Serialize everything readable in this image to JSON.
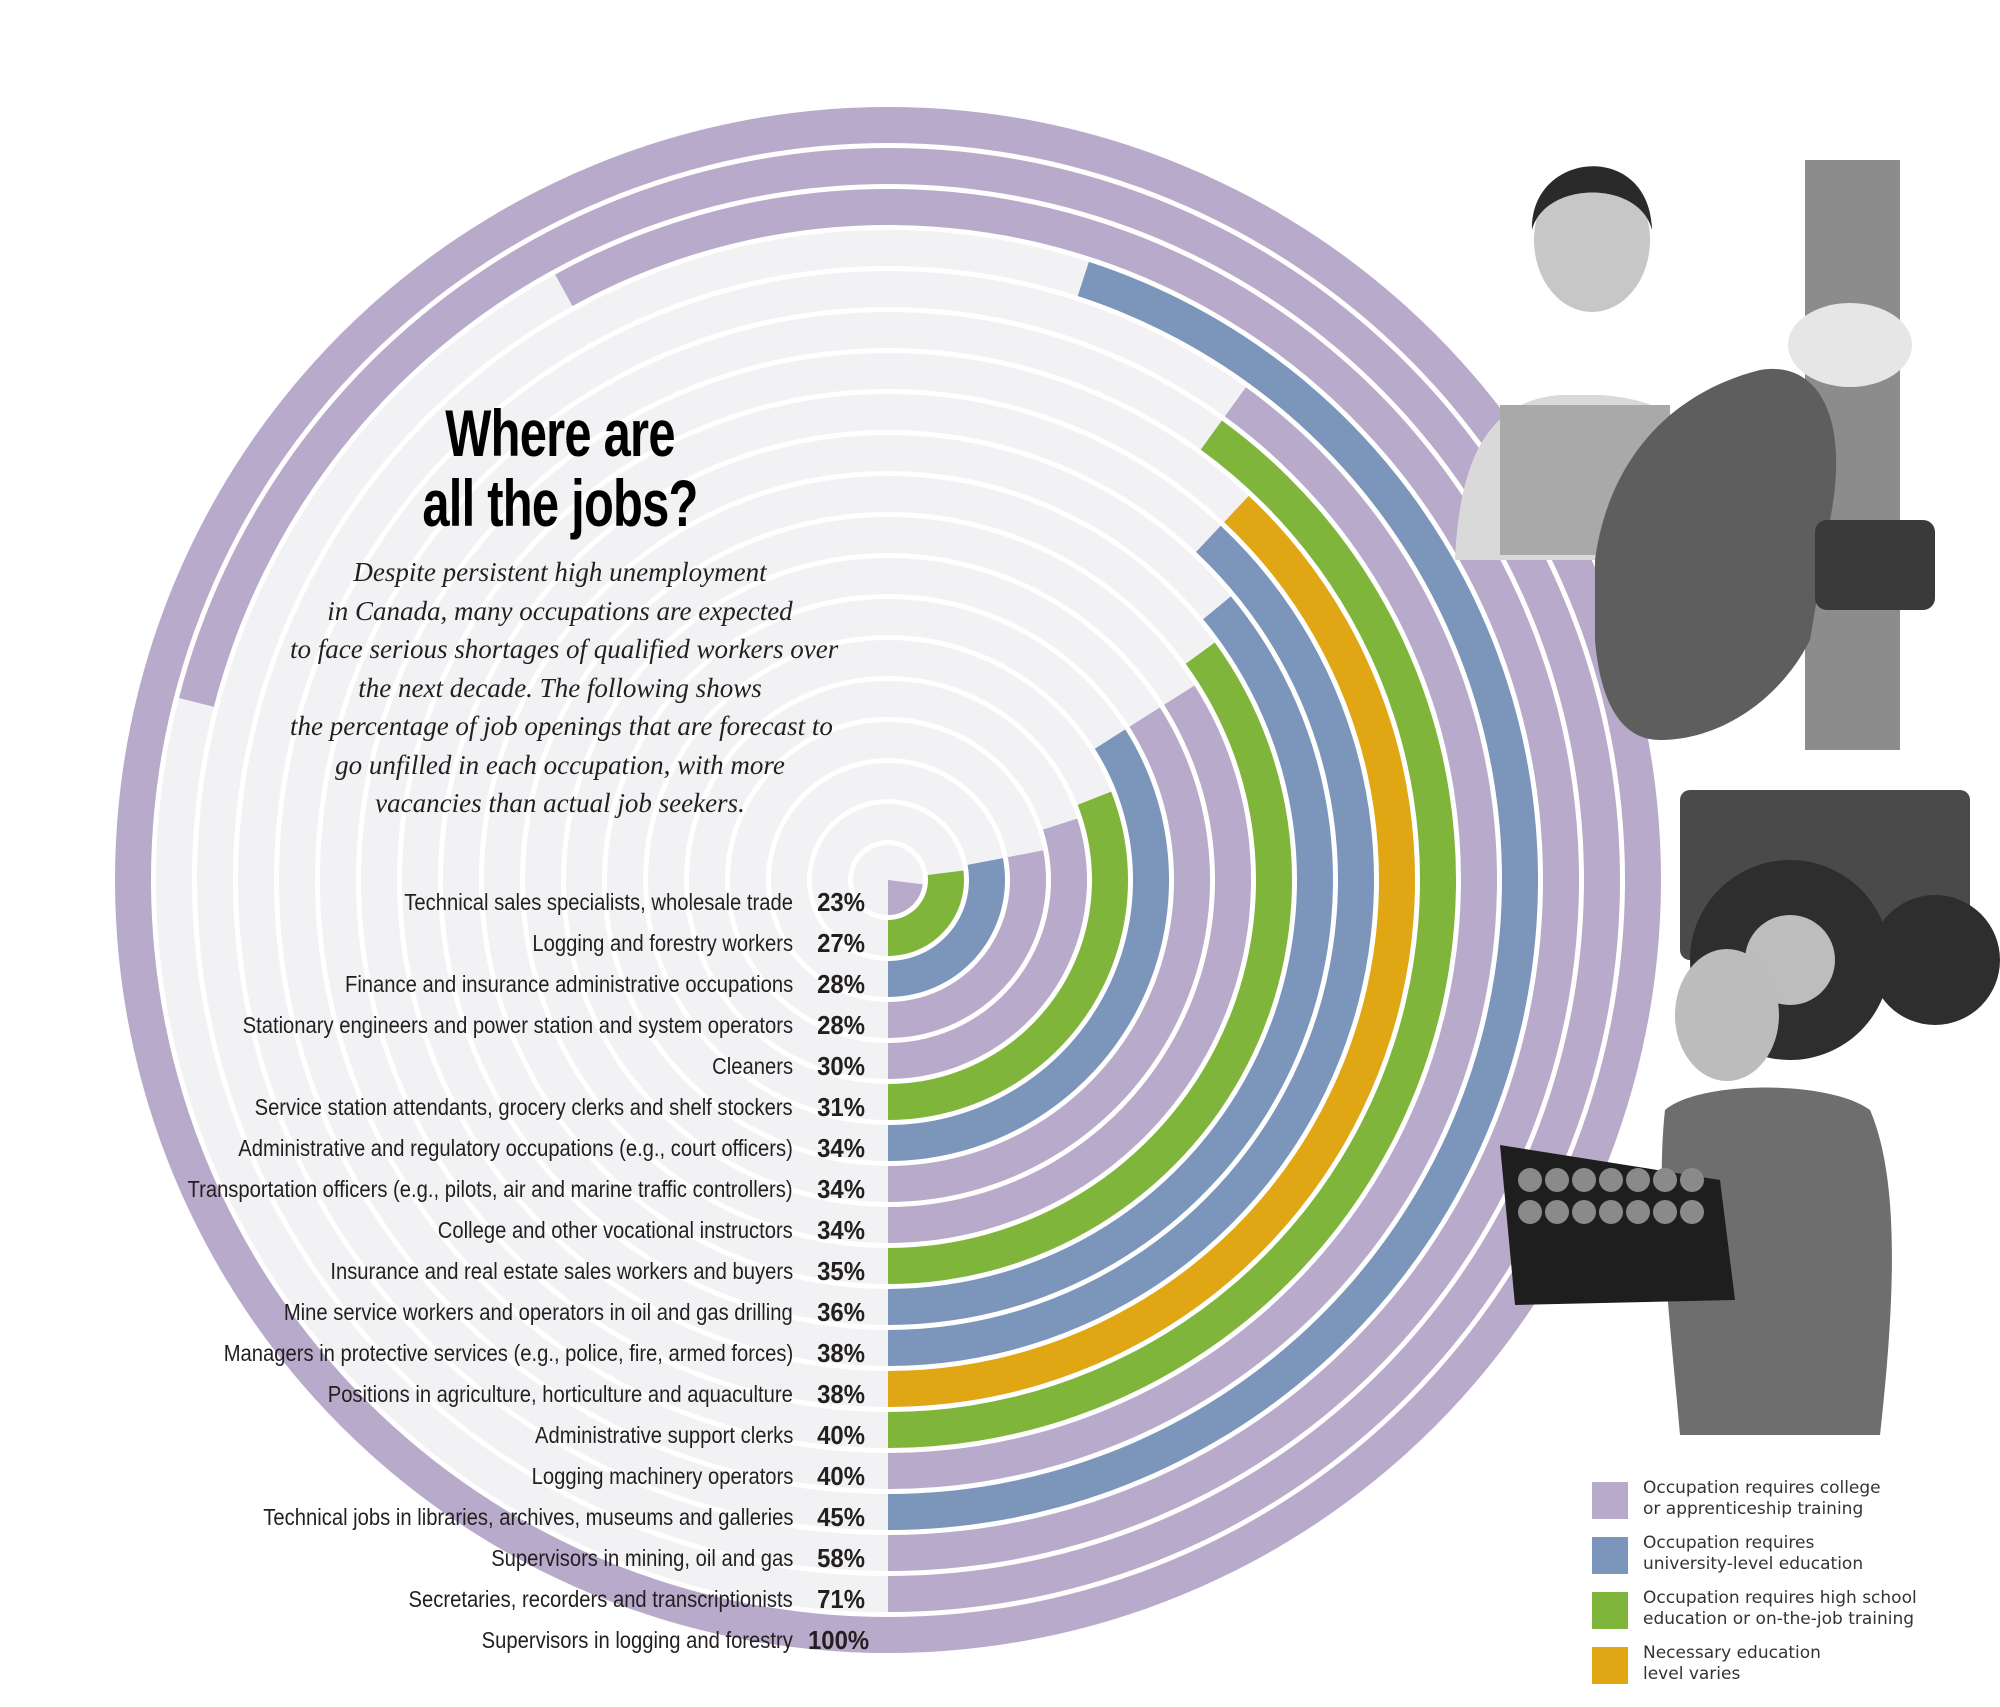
{
  "colors": {
    "college": "#b8aaca",
    "university": "#7b96ba",
    "high_school": "#80b53b",
    "varies": "#e0a614",
    "plot_background": "#f2f2f4",
    "ring_divider": "#ffffff"
  },
  "header": {
    "title_lines": [
      "Where are",
      "all the jobs?"
    ],
    "subtitle_lines": [
      "Despite persistent high unemployment",
      "in Canada, many occupations are expected",
      "to face serious shortages of qualified workers over",
      "the next decade. The following shows",
      "the percentage of job openings that are forecast to",
      "go unfilled in each occupation, with more",
      "vacancies than actual job seekers."
    ]
  },
  "chart_data": {
    "type": "radial-bar",
    "title": "Where are all the jobs?",
    "subtitle": "Despite persistent high unemployment in Canada, many occupations are expected to face serious shortages of qualified workers over the next decade. The following shows the percentage of job openings that are forecast to go unfilled in each occupation, with more vacancies than actual job seekers.",
    "value_range": [
      0,
      100
    ],
    "unit": "%",
    "start_angle": "bottom",
    "direction": "counterclockwise",
    "grid": true,
    "legend_position": "bottom-right",
    "categories": [
      "Technical sales specialists, wholesale trade",
      "Logging and forestry workers",
      "Finance and insurance administrative occupations",
      "Stationary engineers and power station and system operators",
      "Cleaners",
      "Service station attendants, grocery clerks and shelf stockers",
      "Administrative and regulatory occupations (e.g., court officers)",
      "Transportation officers (e.g., pilots, air and marine traffic controllers)",
      "College and other vocational instructors",
      "Insurance and real estate sales workers and buyers",
      "Mine service workers and operators in oil and gas drilling",
      "Managers in protective services (e.g., police, fire, armed forces)",
      "Positions in agriculture, horticulture and aquaculture",
      "Administrative support clerks",
      "Logging machinery operators",
      "Technical jobs in libraries, archives, museums and galleries",
      "Supervisors in mining, oil and gas",
      "Secretaries, recorders and transcriptionists",
      "Supervisors in logging and forestry"
    ],
    "values": [
      23,
      27,
      28,
      28,
      30,
      31,
      34,
      34,
      34,
      35,
      36,
      38,
      38,
      40,
      40,
      45,
      58,
      71,
      100
    ],
    "value_labels": [
      "23%",
      "27%",
      "28%",
      "28%",
      "30%",
      "31%",
      "34%",
      "34%",
      "34%",
      "35%",
      "36%",
      "38%",
      "38%",
      "40%",
      "40%",
      "45%",
      "58%",
      "71%",
      "100%"
    ],
    "education": [
      "college",
      "high_school",
      "university",
      "college",
      "college",
      "high_school",
      "university",
      "college",
      "college",
      "high_school",
      "university",
      "university",
      "varies",
      "high_school",
      "college",
      "university",
      "college",
      "college",
      "college"
    ],
    "legend": [
      {
        "key": "college",
        "label": "Occupation requires college or apprenticeship training"
      },
      {
        "key": "university",
        "label": "Occupation requires university-level education"
      },
      {
        "key": "high_school",
        "label": "Occupation requires high school education or on-the-job training"
      },
      {
        "key": "varies",
        "label": "Necessary education level varies"
      }
    ]
  },
  "legend": {
    "items": [
      {
        "key": "college",
        "lines": [
          "Occupation requires college",
          "or apprenticeship training"
        ]
      },
      {
        "key": "university",
        "lines": [
          "Occupation requires",
          "university-level education"
        ]
      },
      {
        "key": "high_school",
        "lines": [
          "Occupation requires high school",
          "education or on-the-job training"
        ]
      },
      {
        "key": "varies",
        "lines": [
          "Necessary education",
          "level varies"
        ]
      }
    ]
  },
  "photos": [
    {
      "name": "call-center-worker-photo",
      "subject": "woman with headset at laptop"
    },
    {
      "name": "logger-photo",
      "subject": "logger with chainsaw at tree"
    },
    {
      "name": "tractor-photo",
      "subject": "farm tractor"
    },
    {
      "name": "grocer-photo",
      "subject": "man in apron holding crate of tomatoes"
    }
  ]
}
